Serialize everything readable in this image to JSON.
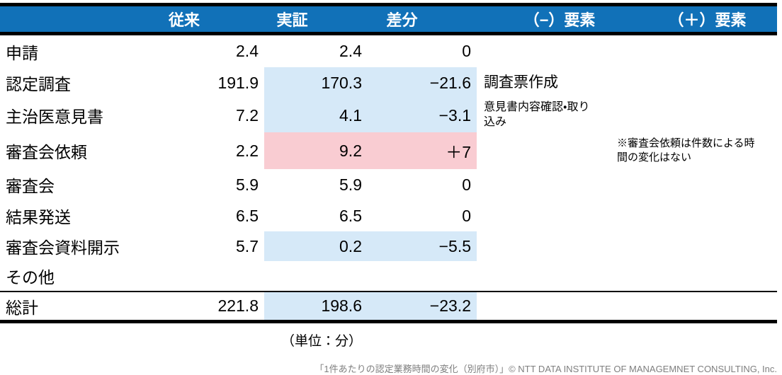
{
  "columns": [
    "従来",
    "実証",
    "差分",
    "（−）要素",
    "（＋）要素"
  ],
  "rows": [
    {
      "label": "申請",
      "jurai": "2.4",
      "jissho": "2.4",
      "sabun": "0",
      "minus": "",
      "plus": "",
      "highlight": "none"
    },
    {
      "label": "認定調査",
      "jurai": "191.9",
      "jissho": "170.3",
      "sabun": "−21.6",
      "minus": "調査票作成",
      "plus": "",
      "highlight": "blue"
    },
    {
      "label": "主治医意見書",
      "jurai": "7.2",
      "jissho": "4.1",
      "sabun": "−3.1",
      "minus": "意見書内容確認・取り\n込み",
      "plus": "",
      "highlight": "blue"
    },
    {
      "label": "審査会依頼",
      "jurai": "2.2",
      "jissho": "9.2",
      "sabun": "＋7",
      "minus": "",
      "plus": "※審査会依頼は件数による時\n間の変化はない",
      "highlight": "pink"
    },
    {
      "label": "審査会",
      "jurai": "5.9",
      "jissho": "5.9",
      "sabun": "0",
      "minus": "",
      "plus": "",
      "highlight": "none"
    },
    {
      "label": "結果発送",
      "jurai": "6.5",
      "jissho": "6.5",
      "sabun": "0",
      "minus": "",
      "plus": "",
      "highlight": "none"
    },
    {
      "label": "審査会資料開示",
      "jurai": "5.7",
      "jissho": "0.2",
      "sabun": "−5.5",
      "minus": "",
      "plus": "",
      "highlight": "blue"
    },
    {
      "label": "その他",
      "jurai": "",
      "jissho": "",
      "sabun": "",
      "minus": "",
      "plus": "",
      "highlight": "none"
    }
  ],
  "total": {
    "label": "総計",
    "jurai": "221.8",
    "jissho": "198.6",
    "sabun": "−23.2",
    "minus": "",
    "plus": "",
    "highlight": "blue"
  },
  "unit_note": "（単位：分）",
  "caption": "「1件あたりの認定業務時間の変化（別府市）」© NTT DATA INSTITUTE OF MANAGEMNET CONSULTING, Inc.",
  "colors": {
    "header_bg": "#1171B8",
    "header_text": "#FFFFFF",
    "highlight_decrease_blue": "#D6E9F8",
    "highlight_increase_pink": "#F9CCD2",
    "border": "#000000",
    "caption_text": "#7F7F7F"
  }
}
